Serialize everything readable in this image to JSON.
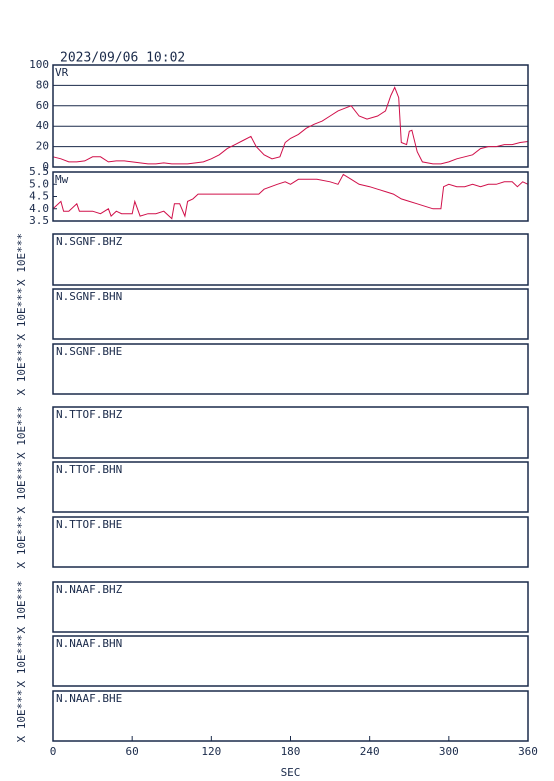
{
  "chart_data": [
    {
      "type": "line",
      "title": "2023/09/06 10:02",
      "ylabel": "VR",
      "color": "#d0104a",
      "grid": true,
      "ylim": [
        0,
        100
      ],
      "yticks": [
        0,
        20,
        40,
        60,
        80,
        100
      ],
      "x": [
        0,
        6,
        12,
        18,
        24,
        30,
        36,
        42,
        48,
        54,
        60,
        66,
        72,
        78,
        84,
        90,
        96,
        102,
        108,
        114,
        120,
        126,
        132,
        138,
        144,
        150,
        154,
        160,
        166,
        172,
        176,
        180,
        186,
        192,
        198,
        204,
        210,
        216,
        222,
        226,
        232,
        238,
        246,
        252,
        256,
        259,
        262,
        264,
        268,
        270,
        272,
        276,
        280,
        288,
        294,
        300,
        306,
        312,
        318,
        324,
        330,
        336,
        342,
        348,
        354,
        360
      ],
      "values": [
        10,
        8,
        5,
        5,
        6,
        10,
        10,
        5,
        6,
        6,
        5,
        4,
        3,
        3,
        4,
        3,
        3,
        3,
        4,
        5,
        8,
        12,
        18,
        22,
        26,
        30,
        20,
        12,
        8,
        10,
        24,
        28,
        32,
        38,
        42,
        45,
        50,
        55,
        58,
        60,
        50,
        47,
        50,
        55,
        70,
        78,
        68,
        24,
        22,
        35,
        36,
        15,
        5,
        3,
        3,
        5,
        8,
        10,
        12,
        18,
        20,
        20,
        22,
        22,
        24,
        25
      ]
    },
    {
      "type": "line",
      "ylabel": "Mw",
      "color": "#d0104a",
      "grid": false,
      "ylim": [
        3.5,
        5.5
      ],
      "yticks": [
        3.5,
        {
          "value": 4,
          "label": "4.0"
        },
        4.5,
        {
          "value": 5,
          "label": "5.0"
        },
        5.5
      ],
      "x": [
        0,
        6,
        8,
        12,
        18,
        20,
        30,
        36,
        42,
        44,
        48,
        52,
        60,
        62,
        66,
        72,
        78,
        84,
        90,
        92,
        96,
        100,
        102,
        106,
        110,
        120,
        130,
        140,
        150,
        156,
        160,
        170,
        176,
        180,
        186,
        190,
        200,
        210,
        216,
        220,
        226,
        232,
        240,
        246,
        252,
        258,
        264,
        270,
        276,
        282,
        288,
        294,
        296,
        300,
        306,
        312,
        318,
        324,
        330,
        336,
        342,
        348,
        352,
        356,
        360
      ],
      "values": [
        4.0,
        4.3,
        3.9,
        3.9,
        4.2,
        3.9,
        3.9,
        3.8,
        4.0,
        3.7,
        3.9,
        3.8,
        3.8,
        4.3,
        3.7,
        3.8,
        3.8,
        3.9,
        3.6,
        4.2,
        4.2,
        3.7,
        4.3,
        4.4,
        4.6,
        4.6,
        4.6,
        4.6,
        4.6,
        4.6,
        4.8,
        5.0,
        5.1,
        5.0,
        5.2,
        5.2,
        5.2,
        5.1,
        5.0,
        5.4,
        5.2,
        5.0,
        4.9,
        4.8,
        4.7,
        4.6,
        4.4,
        4.3,
        4.2,
        4.1,
        4.0,
        4.0,
        4.9,
        5.0,
        4.9,
        4.9,
        5.0,
        4.9,
        5.0,
        5.0,
        5.1,
        5.1,
        4.9,
        5.1,
        5.0
      ]
    },
    {
      "type": "waveform",
      "title": "N.SGNF.BHZ",
      "ylabel": "X 10E***"
    },
    {
      "type": "waveform",
      "title": "N.SGNF.BHN",
      "ylabel": "X 10E***"
    },
    {
      "type": "waveform",
      "title": "N.SGNF.BHE",
      "ylabel": "X 10E***"
    },
    {
      "type": "waveform",
      "title": "N.TTOF.BHZ",
      "ylabel": "X 10E***"
    },
    {
      "type": "waveform",
      "title": "N.TTOF.BHN",
      "ylabel": "X 10E***"
    },
    {
      "type": "waveform",
      "title": "N.TTOF.BHE",
      "ylabel": "X 10E***"
    },
    {
      "type": "waveform",
      "title": "N.NAAF.BHZ",
      "ylabel": "X 10E***"
    },
    {
      "type": "waveform",
      "title": "N.NAAF.BHN",
      "ylabel": "X 10E***"
    },
    {
      "type": "waveform",
      "title": "N.NAAF.BHE",
      "ylabel": "X 10E***",
      "xlabel": "SEC",
      "xlim": [
        0,
        360
      ],
      "xticks": [
        0,
        60,
        120,
        180,
        240,
        300,
        360
      ]
    }
  ]
}
